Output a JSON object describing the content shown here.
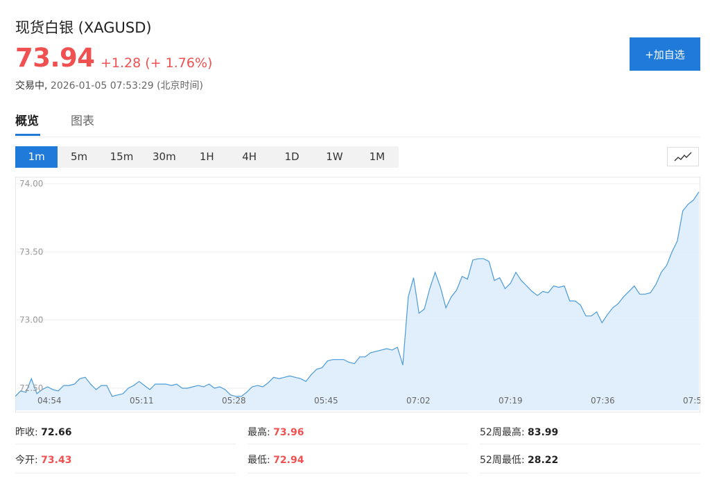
{
  "header": {
    "title": "现货白银 (XAGUSD)",
    "price": "73.94",
    "change": "+1.28 (+ 1.76%)",
    "status_label": "交易中,",
    "timestamp": "2026-01-05 07:53:29",
    "timezone": "(北京时间)",
    "add_watchlist": "+加自选"
  },
  "tabs": [
    {
      "label": "概览"
    },
    {
      "label": "图表"
    }
  ],
  "periods": [
    "1m",
    "5m",
    "15m",
    "30m",
    "1H",
    "4H",
    "1D",
    "1W",
    "1M"
  ],
  "colors": {
    "accent": "#1f7ad9",
    "up": "#f05050",
    "line": "#4a9ad8",
    "area": "#dcebfa"
  },
  "chart_data": {
    "type": "area",
    "x_ticks": [
      "04:54",
      "05:11",
      "05:28",
      "05:45",
      "07:02",
      "07:19",
      "07:36",
      "07:5"
    ],
    "y_ticks": [
      "74.00",
      "73.50",
      "73.00",
      "72.50"
    ],
    "ylim": [
      72.5,
      74.0
    ],
    "values": [
      72.44,
      72.48,
      72.47,
      72.57,
      72.46,
      72.49,
      72.51,
      72.49,
      72.48,
      72.52,
      72.52,
      72.53,
      72.57,
      72.58,
      72.53,
      72.49,
      72.52,
      72.52,
      72.44,
      72.45,
      72.46,
      72.5,
      72.52,
      72.55,
      72.52,
      72.49,
      72.53,
      72.53,
      72.53,
      72.52,
      72.53,
      72.5,
      72.5,
      72.51,
      72.52,
      72.51,
      72.53,
      72.5,
      72.51,
      72.49,
      72.45,
      72.44,
      72.44,
      72.47,
      72.51,
      72.52,
      72.51,
      72.54,
      72.58,
      72.57,
      72.58,
      72.59,
      72.58,
      72.57,
      72.55,
      72.6,
      72.64,
      72.65,
      72.7,
      72.71,
      72.71,
      72.71,
      72.69,
      72.68,
      72.73,
      72.73,
      72.76,
      72.77,
      72.78,
      72.79,
      72.78,
      72.8,
      72.67,
      73.17,
      73.31,
      73.05,
      73.08,
      73.23,
      73.35,
      73.24,
      73.09,
      73.17,
      73.22,
      73.32,
      73.3,
      73.44,
      73.45,
      73.45,
      73.43,
      73.29,
      73.31,
      73.23,
      73.27,
      73.35,
      73.29,
      73.25,
      73.21,
      73.18,
      73.21,
      73.2,
      73.25,
      73.24,
      73.25,
      73.14,
      73.14,
      73.11,
      73.03,
      73.03,
      73.06,
      72.98,
      73.04,
      73.09,
      73.12,
      73.17,
      73.21,
      73.25,
      73.19,
      73.19,
      73.2,
      73.26,
      73.35,
      73.4,
      73.5,
      73.58,
      73.8,
      73.85,
      73.88,
      73.94
    ]
  },
  "stats": [
    {
      "label": "昨收:",
      "value": "72.66",
      "up": false
    },
    {
      "label": "最高:",
      "value": "73.96",
      "up": true
    },
    {
      "label": "52周最高:",
      "value": "83.99",
      "up": false
    },
    {
      "label": "今开:",
      "value": "73.43",
      "up": true
    },
    {
      "label": "最低:",
      "value": "72.94",
      "up": true
    },
    {
      "label": "52周最低:",
      "value": "28.22",
      "up": false
    }
  ]
}
